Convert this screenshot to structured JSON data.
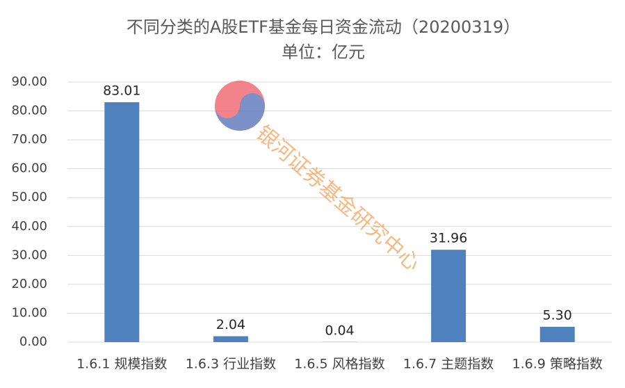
{
  "chart_data": {
    "type": "bar",
    "title": "不同分类的A股ETF基金每日资金流动（20200319）",
    "subtitle": "单位：亿元",
    "watermark": "银河证券基金研究中心",
    "categories": [
      "1.6.1 规模指数",
      "1.6.3 行业指数",
      "1.6.5 风格指数",
      "1.6.7 主题指数",
      "1.6.9 策略指数"
    ],
    "values": [
      83.01,
      2.04,
      0.04,
      31.96,
      5.3
    ],
    "value_labels": [
      "83.01",
      "2.04",
      "0.04",
      "31.96",
      "5.30"
    ],
    "color": "#4f81bd",
    "ylim": [
      0,
      90
    ],
    "yticks": [
      {
        "value": 0,
        "label": "0.00"
      },
      {
        "value": 10,
        "label": "10.00"
      },
      {
        "value": 20,
        "label": "20.00"
      },
      {
        "value": 30,
        "label": "30.00"
      },
      {
        "value": 40,
        "label": "40.00"
      },
      {
        "value": 50,
        "label": "50.00"
      },
      {
        "value": 60,
        "label": "60.00"
      },
      {
        "value": 70,
        "label": "70.00"
      },
      {
        "value": 80,
        "label": "80.00"
      },
      {
        "value": 90,
        "label": "90.00"
      }
    ],
    "grid": true
  }
}
